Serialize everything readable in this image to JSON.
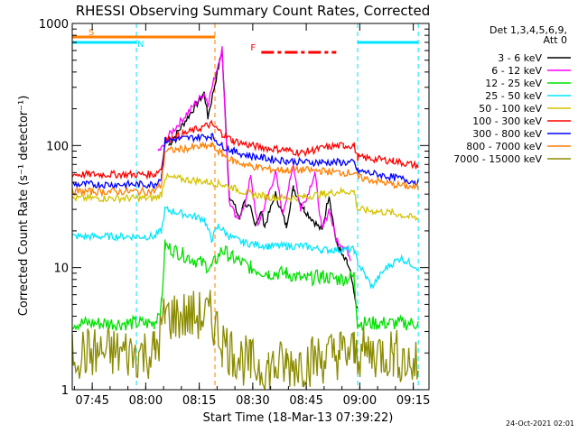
{
  "chart_data": {
    "type": "line",
    "title": "RHESSI Observing Summary Count Rates, Corrected",
    "xlabel": "Start Time (18-Mar-13 07:39:22)",
    "ylabel": "Corrected Count Rate (s⁻¹ detector⁻¹)",
    "yscale": "log",
    "ylim": [
      1,
      1000
    ],
    "xlim_minutes": [
      0,
      100
    ],
    "x_ticks": [
      "07:45",
      "08:00",
      "08:15",
      "08:30",
      "08:45",
      "09:00",
      "09:15"
    ],
    "y_ticks": [
      "1",
      "10",
      "100",
      "1000"
    ],
    "grid": false,
    "legend_position": "top-right",
    "legend_header": [
      "Det 1,3,4,5,6,9,",
      "Att 0"
    ],
    "footer_date": "24-Oct-2021 02:01",
    "flags": [
      {
        "label": "S",
        "color": "#ff7f00",
        "segments": [
          [
            0,
            40
          ]
        ]
      },
      {
        "label": "N",
        "color": "#00e5ff",
        "segments": [
          [
            0,
            18
          ],
          [
            80,
            97
          ]
        ]
      },
      {
        "label": "F",
        "color": "#ff0000",
        "segments": [
          [
            53,
            74
          ]
        ]
      }
    ],
    "orbit_markers_x": [
      0,
      18,
      40,
      80,
      97
    ],
    "series": [
      {
        "name": "3 - 6 keV",
        "color": "#000000",
        "points": [
          [
            27,
            100
          ],
          [
            37,
            270
          ],
          [
            38,
            170
          ],
          [
            42,
            600
          ],
          [
            44,
            40
          ],
          [
            47,
            25
          ],
          [
            48,
            35
          ],
          [
            50,
            30
          ],
          [
            51,
            23
          ],
          [
            52,
            25
          ],
          [
            53,
            28
          ],
          [
            54,
            22
          ],
          [
            57,
            40
          ],
          [
            60,
            22
          ],
          [
            62,
            45
          ],
          [
            65,
            30
          ],
          [
            70,
            20
          ],
          [
            72,
            40
          ],
          [
            74,
            16
          ],
          [
            75,
            14
          ],
          [
            76,
            12
          ],
          [
            77,
            11
          ],
          [
            78,
            9
          ],
          [
            79,
            6
          ],
          [
            80,
            4.5
          ]
        ]
      },
      {
        "name": "6 - 12 keV",
        "color": "#ff00ff",
        "points": [
          [
            24,
            90
          ],
          [
            26,
            100
          ],
          [
            27,
            120
          ],
          [
            37,
            270
          ],
          [
            38,
            220
          ],
          [
            42,
            620
          ],
          [
            44,
            35
          ],
          [
            46,
            25
          ],
          [
            48,
            30
          ],
          [
            50,
            55
          ],
          [
            52,
            22
          ],
          [
            55,
            40
          ],
          [
            57,
            60
          ],
          [
            59,
            28
          ],
          [
            61,
            50
          ],
          [
            62,
            70
          ],
          [
            64,
            30
          ],
          [
            66,
            40
          ],
          [
            68,
            60
          ],
          [
            70,
            20
          ],
          [
            72,
            30
          ],
          [
            74,
            17
          ],
          [
            76,
            15
          ],
          [
            77,
            14
          ],
          [
            78,
            12
          ]
        ]
      },
      {
        "name": "12 - 25 keV",
        "color": "#00e000",
        "points": [
          [
            0,
            3.5
          ],
          [
            23,
            3.5
          ],
          [
            25,
            5
          ],
          [
            26,
            15
          ],
          [
            39,
            10
          ],
          [
            42,
            14
          ],
          [
            45,
            12
          ],
          [
            50,
            10
          ],
          [
            55,
            9
          ],
          [
            60,
            9
          ],
          [
            65,
            8
          ],
          [
            70,
            8.5
          ],
          [
            75,
            8
          ],
          [
            79,
            8.5
          ],
          [
            80,
            3.5
          ],
          [
            97,
            3.5
          ]
        ]
      },
      {
        "name": "25 - 50 keV",
        "color": "#00e5ff",
        "points": [
          [
            0,
            18
          ],
          [
            23,
            18
          ],
          [
            25,
            20
          ],
          [
            26,
            30
          ],
          [
            37,
            25
          ],
          [
            39,
            17
          ],
          [
            41,
            22
          ],
          [
            44,
            18
          ],
          [
            48,
            16
          ],
          [
            55,
            15
          ],
          [
            60,
            15
          ],
          [
            65,
            15
          ],
          [
            70,
            14
          ],
          [
            75,
            14
          ],
          [
            79,
            14
          ],
          [
            80,
            11
          ],
          [
            84,
            7
          ],
          [
            88,
            10
          ],
          [
            92,
            12
          ],
          [
            97,
            10
          ]
        ]
      },
      {
        "name": "50 - 100 keV",
        "color": "#d4c400",
        "points": [
          [
            0,
            37
          ],
          [
            23,
            37
          ],
          [
            25,
            40
          ],
          [
            26,
            55
          ],
          [
            39,
            50
          ],
          [
            42,
            48
          ],
          [
            45,
            45
          ],
          [
            50,
            40
          ],
          [
            55,
            38
          ],
          [
            60,
            37
          ],
          [
            65,
            38
          ],
          [
            70,
            40
          ],
          [
            75,
            42
          ],
          [
            79,
            42
          ],
          [
            80,
            30
          ],
          [
            90,
            28
          ],
          [
            97,
            25
          ]
        ]
      },
      {
        "name": "100 - 300 keV",
        "color": "#ff0000",
        "points": [
          [
            0,
            58
          ],
          [
            23,
            58
          ],
          [
            25,
            65
          ],
          [
            26,
            110
          ],
          [
            39,
            150
          ],
          [
            42,
            125
          ],
          [
            45,
            110
          ],
          [
            50,
            100
          ],
          [
            55,
            95
          ],
          [
            60,
            92
          ],
          [
            64,
            87
          ],
          [
            68,
            92
          ],
          [
            72,
            98
          ],
          [
            76,
            100
          ],
          [
            79,
            100
          ],
          [
            80,
            80
          ],
          [
            90,
            75
          ],
          [
            97,
            68
          ]
        ]
      },
      {
        "name": "300 - 800 keV",
        "color": "#0000ff",
        "points": [
          [
            0,
            48
          ],
          [
            23,
            48
          ],
          [
            25,
            55
          ],
          [
            26,
            110
          ],
          [
            39,
            120
          ],
          [
            42,
            100
          ],
          [
            45,
            90
          ],
          [
            50,
            82
          ],
          [
            55,
            78
          ],
          [
            60,
            75
          ],
          [
            65,
            73
          ],
          [
            70,
            73
          ],
          [
            75,
            73
          ],
          [
            79,
            72
          ],
          [
            80,
            62
          ],
          [
            90,
            55
          ],
          [
            97,
            50
          ]
        ]
      },
      {
        "name": "800 - 7000 keV",
        "color": "#ff7f00",
        "points": [
          [
            0,
            42
          ],
          [
            23,
            42
          ],
          [
            25,
            48
          ],
          [
            26,
            90
          ],
          [
            39,
            100
          ],
          [
            42,
            85
          ],
          [
            45,
            75
          ],
          [
            50,
            68
          ],
          [
            55,
            64
          ],
          [
            60,
            63
          ],
          [
            65,
            63
          ],
          [
            70,
            62
          ],
          [
            75,
            60
          ],
          [
            79,
            60
          ],
          [
            80,
            55
          ],
          [
            90,
            48
          ],
          [
            97,
            45
          ]
        ]
      },
      {
        "name": "7000 - 15000 keV",
        "color": "#8b8b00",
        "points": [
          [
            0,
            2
          ],
          [
            23,
            2
          ],
          [
            25,
            3
          ],
          [
            26,
            4
          ],
          [
            39,
            4
          ],
          [
            42,
            2.5
          ],
          [
            45,
            2
          ],
          [
            50,
            1.6
          ],
          [
            55,
            1.5
          ],
          [
            60,
            1.6
          ],
          [
            65,
            1.7
          ],
          [
            70,
            1.8
          ],
          [
            75,
            2
          ],
          [
            79,
            2
          ],
          [
            80,
            2
          ],
          [
            90,
            2
          ],
          [
            97,
            1.5
          ]
        ]
      }
    ]
  }
}
